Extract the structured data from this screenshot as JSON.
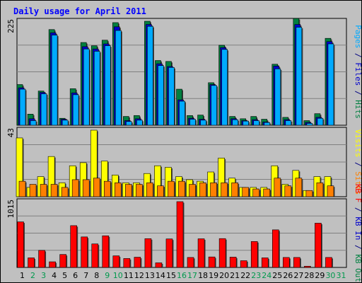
{
  "chart_data": {
    "type": "bar",
    "title": "Daily usage for April 2011",
    "categories": [
      "1",
      "2",
      "3",
      "4",
      "5",
      "6",
      "7",
      "8",
      "9",
      "10",
      "11",
      "12",
      "13",
      "14",
      "15",
      "16",
      "17",
      "18",
      "19",
      "20",
      "21",
      "22",
      "23",
      "24",
      "25",
      "26",
      "27",
      "28",
      "29",
      "30",
      "31"
    ],
    "weekend_days": [
      2,
      3,
      9,
      10,
      16,
      17,
      23,
      24,
      30,
      31
    ],
    "panels": [
      {
        "id": "top",
        "ymax_label": "225",
        "ylim": [
          0,
          225
        ],
        "right_label_parts": [
          {
            "text": "Pages",
            "color": "#00aaff"
          },
          {
            "text": " / ",
            "color": "#000080"
          },
          {
            "text": "Files",
            "color": "#0000cc"
          },
          {
            "text": " / ",
            "color": "#000080"
          },
          {
            "text": "Hits",
            "color": "#008040"
          }
        ],
        "series": [
          {
            "name": "Hits",
            "color": "#008040",
            "values": [
              88,
              24,
              74,
              207,
              15,
              79,
              179,
              172,
              184,
              222,
              19,
              21,
              225,
              140,
              138,
              78,
              21,
              22,
              92,
              173,
              19,
              14,
              19,
              13,
              132,
              17,
              231,
              10,
              25,
              188
            ]
          },
          {
            "name": "Files",
            "color": "#0000cc",
            "values": [
              81,
              14,
              71,
              200,
              13,
              70,
              170,
              165,
              176,
              213,
              10,
              14,
              218,
              133,
              127,
              55,
              15,
              13,
              88,
              168,
              14,
              10,
              12,
              7,
              128,
              12,
              218,
              6,
              17,
              181
            ]
          },
          {
            "name": "Pages",
            "color": "#00aaff",
            "values": [
              78,
              10,
              68,
              195,
              11,
              66,
              165,
              160,
              172,
              205,
              8,
              11,
              214,
              129,
              125,
              52,
              13,
              11,
              86,
              164,
              12,
              9,
              10,
              6,
              122,
              10,
              212,
              4,
              15,
              176
            ]
          }
        ]
      },
      {
        "id": "middle",
        "ymax_label": "43",
        "ylim": [
          0,
          43
        ],
        "right_label_parts": [
          {
            "text": "Visits",
            "color": "#ffff00"
          },
          {
            "text": " / ",
            "color": "#000080"
          },
          {
            "text": "Sites",
            "color": "#ff8000"
          }
        ],
        "series": [
          {
            "name": "Visits",
            "color": "#ffff00",
            "values": [
              38,
              6,
              13,
              26,
              9,
              20,
              22,
              43,
              23,
              14,
              9,
              9,
              15,
              20,
              19,
              13,
              11,
              10,
              16,
              25,
              12,
              6,
              6,
              6,
              20,
              8,
              17,
              4,
              13,
              13
            ]
          },
          {
            "name": "Sites",
            "color": "#ff8000",
            "values": [
              10,
              8,
              8,
              8,
              6,
              11,
              11,
              12,
              10,
              9,
              8,
              8,
              9,
              7,
              10,
              10,
              8,
              9,
              9,
              9,
              9,
              6,
              5,
              5,
              12,
              7,
              12,
              4,
              9,
              7
            ]
          }
        ]
      },
      {
        "id": "bottom",
        "ymax_label": "1015",
        "ylim": [
          0,
          1015
        ],
        "right_label_parts": [
          {
            "text": "KB F",
            "color": "#ff0000"
          },
          {
            "text": " / ",
            "color": "#000080"
          },
          {
            "text": "KB In",
            "color": "#0000cc"
          },
          {
            "text": " / ",
            "color": "#000080"
          },
          {
            "text": "KB Out",
            "color": "#008040"
          }
        ],
        "series": [
          {
            "name": "KB F",
            "color": "#ff0000",
            "values": [
              703,
              148,
              263,
              87,
              200,
              645,
              471,
              363,
              488,
              179,
              138,
              158,
              444,
              71,
              440,
              1015,
              154,
              442,
              162,
              445,
              159,
              104,
              400,
              148,
              580,
              154,
              154,
              19,
              683,
              154
            ]
          }
        ]
      }
    ]
  },
  "colors": {
    "background": "#c0c0c0",
    "plot_area": "#c0c0c0",
    "gridline": "#808080",
    "title": "#0000ff",
    "axis_text": "#000000",
    "weekend_day": "#00994d",
    "weekday": "#000000"
  }
}
